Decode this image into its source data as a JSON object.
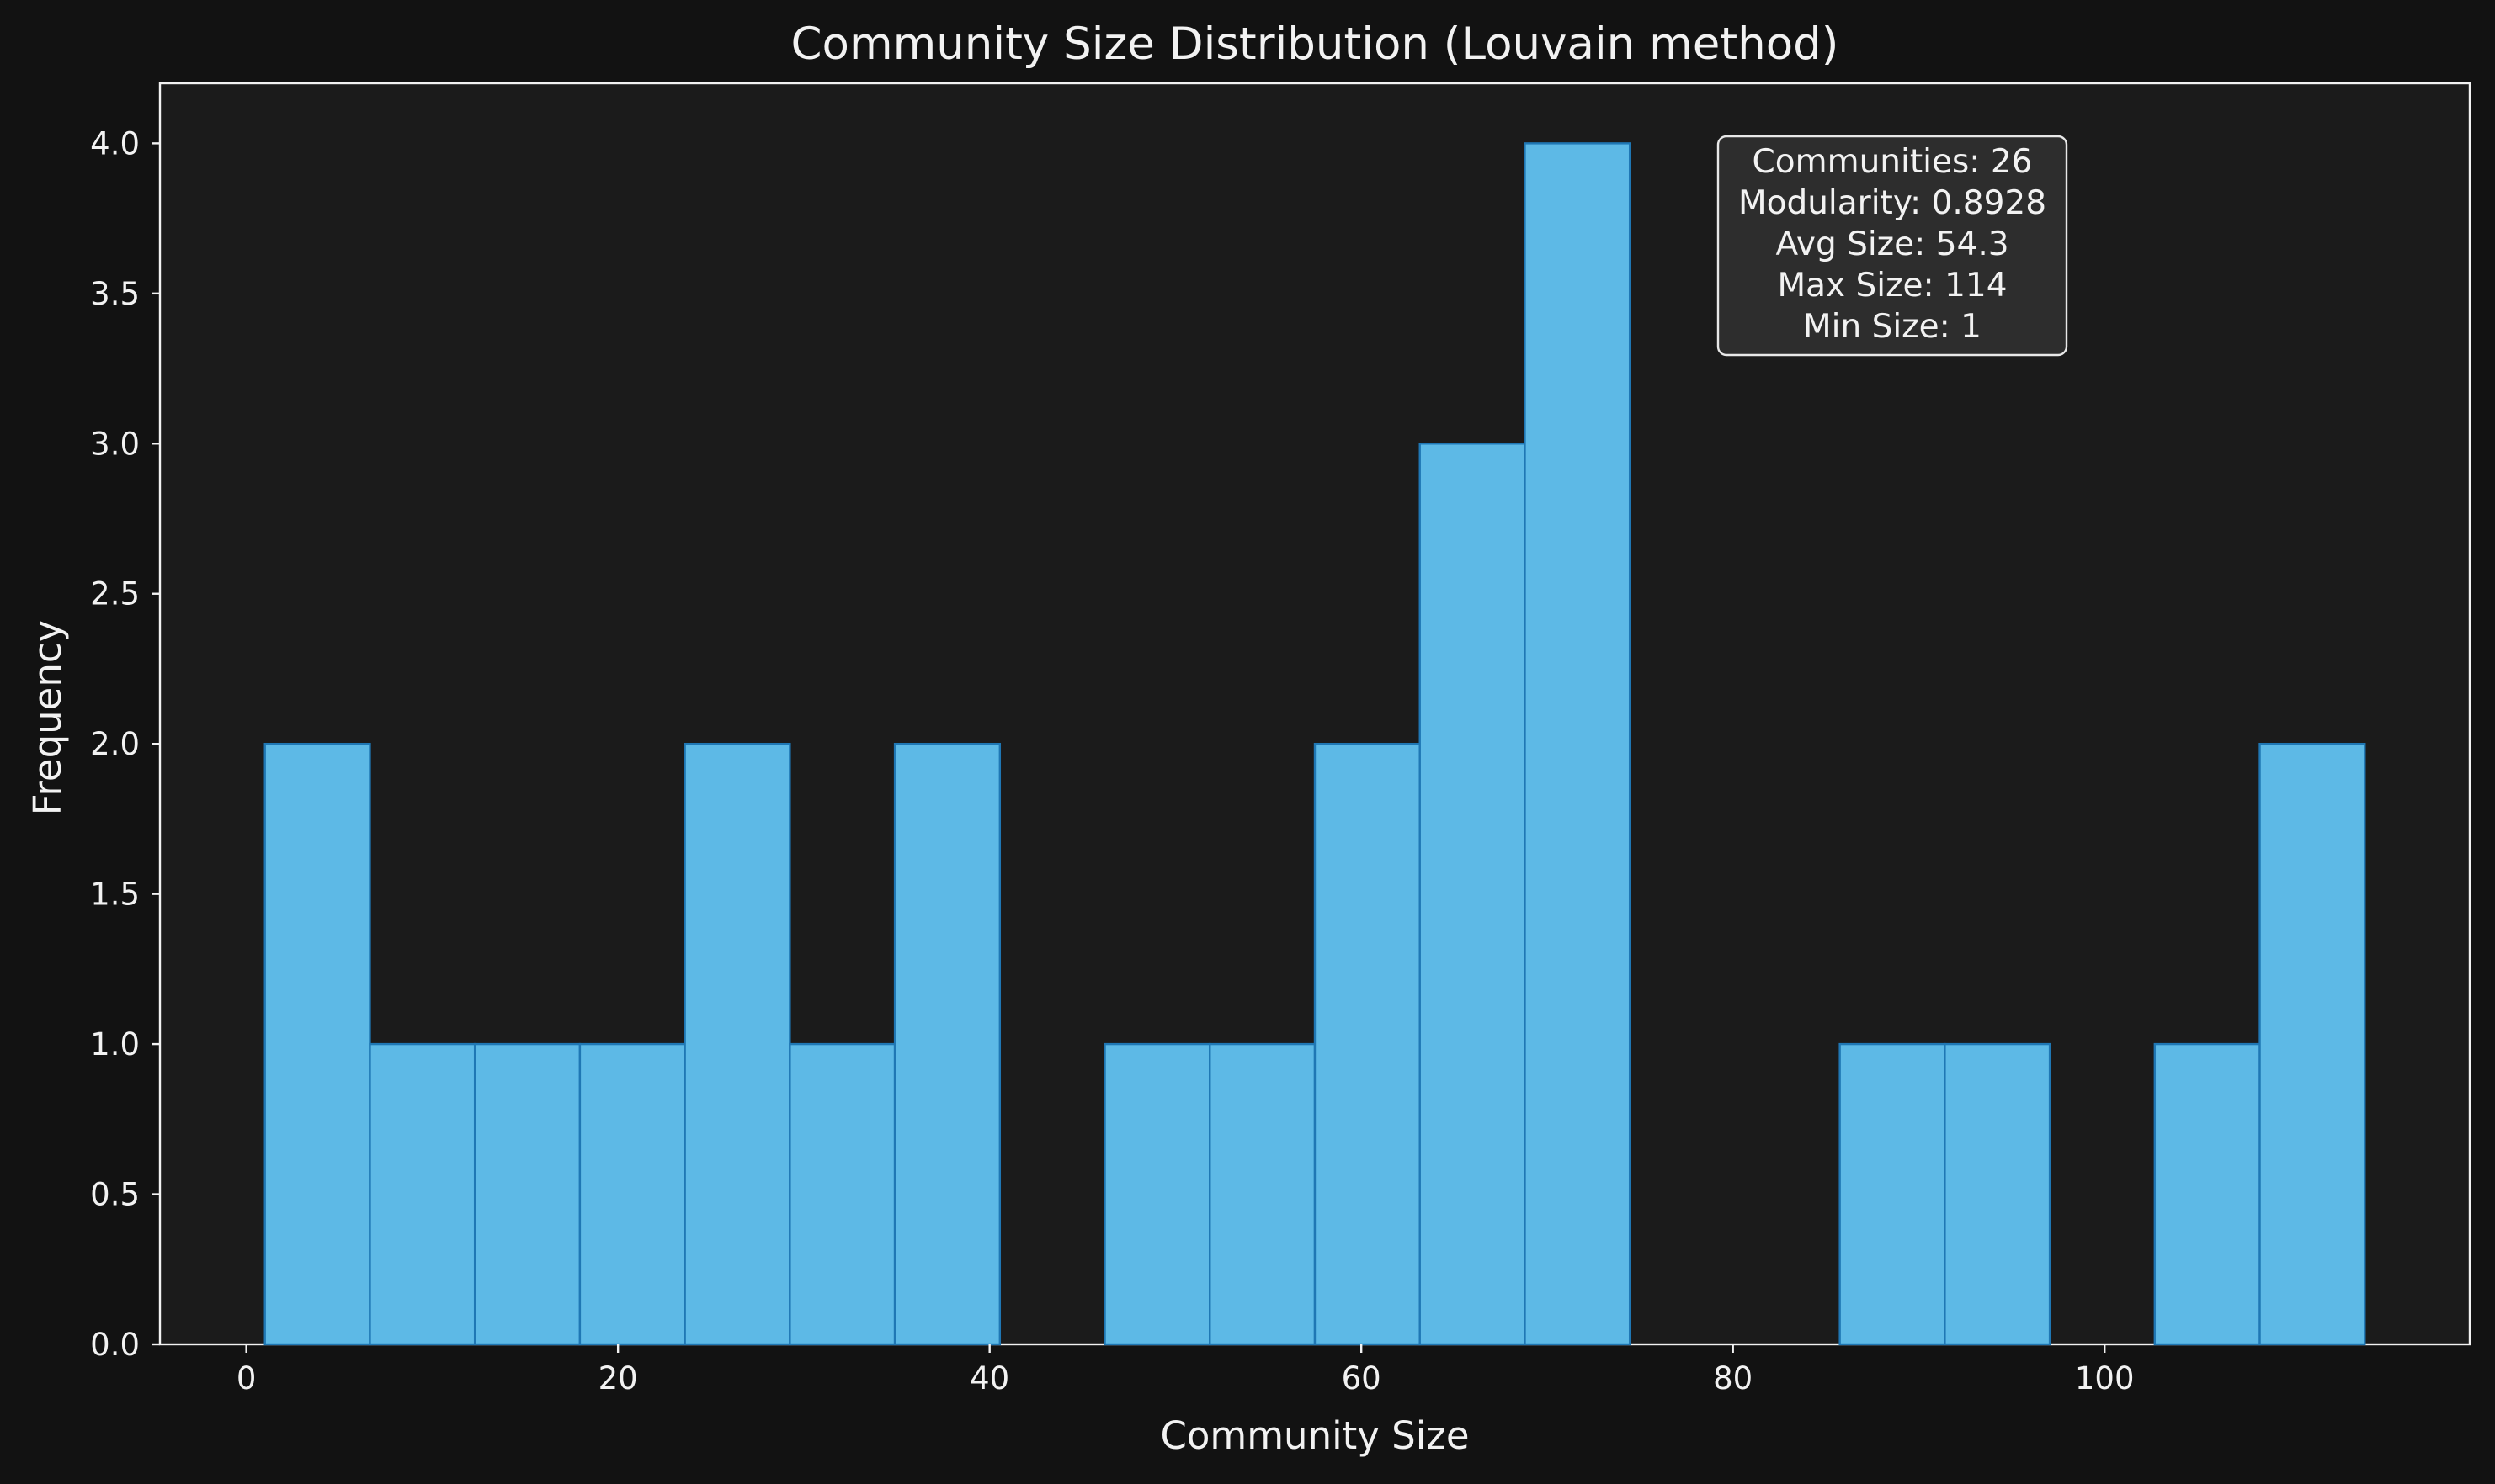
{
  "chart_data": {
    "type": "bar",
    "title": "Community Size Distribution (Louvain method)",
    "xlabel": "Community Size",
    "ylabel": "Frequency",
    "xlim": [
      -4.65,
      119.65
    ],
    "ylim": [
      0,
      4.2
    ],
    "x_ticks": [
      0,
      20,
      40,
      60,
      80,
      100
    ],
    "x_tick_labels": [
      "0",
      "20",
      "40",
      "60",
      "80",
      "100"
    ],
    "y_ticks": [
      0.0,
      0.5,
      1.0,
      1.5,
      2.0,
      2.5,
      3.0,
      3.5,
      4.0
    ],
    "y_tick_labels": [
      "0.0",
      "0.5",
      "1.0",
      "1.5",
      "2.0",
      "2.5",
      "3.0",
      "3.5",
      "4.0"
    ],
    "bin_edges": [
      1,
      6.65,
      12.3,
      17.95,
      23.6,
      29.25,
      34.9,
      40.55,
      46.2,
      51.85,
      57.5,
      63.15,
      68.8,
      74.45,
      80.1,
      85.75,
      91.4,
      97.05,
      102.7,
      108.35,
      114
    ],
    "values": [
      2,
      1,
      1,
      1,
      2,
      1,
      2,
      0,
      1,
      1,
      2,
      3,
      4,
      0,
      0,
      1,
      1,
      0,
      1,
      2
    ],
    "grid": false,
    "legend": "none",
    "bar_color": "#5DB9E6",
    "bar_edge_color": "#1F77B4",
    "plot_background": "#1B1B1B",
    "figure_background": "#121212",
    "text_color": "#F2F2F2",
    "annotation": {
      "position": "top-right",
      "lines": [
        "Communities: 26",
        "Modularity: 0.8928",
        "Avg Size: 54.3",
        "Max Size: 114",
        "Min Size: 1"
      ]
    }
  }
}
